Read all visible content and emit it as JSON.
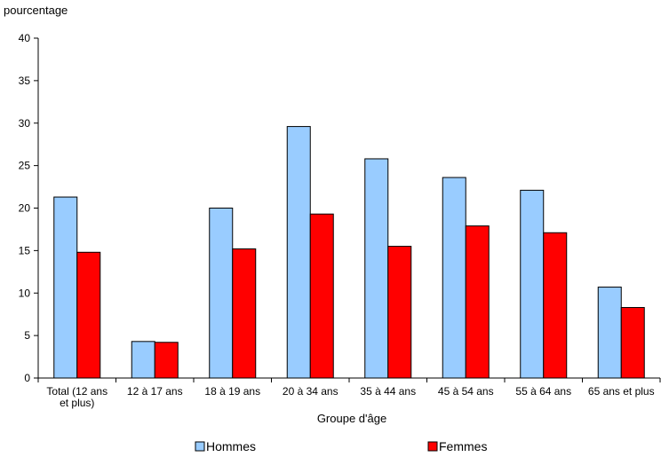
{
  "chart_data": {
    "type": "bar",
    "ylabel": "pourcentage",
    "xlabel": "Groupe d'âge",
    "ylim": [
      0,
      40
    ],
    "yticks": [
      0,
      5,
      10,
      15,
      20,
      25,
      30,
      35,
      40
    ],
    "grid": false,
    "legend_position": "bottom",
    "categories": [
      [
        "Total (12 ans",
        "et plus)"
      ],
      [
        "12 à 17 ans"
      ],
      [
        "18 à 19 ans"
      ],
      [
        "20 à 34 ans"
      ],
      [
        "35 à 44 ans"
      ],
      [
        "45 à 54 ans"
      ],
      [
        "55 à 64 ans"
      ],
      [
        "65 ans et plus"
      ]
    ],
    "series": [
      {
        "name": "Hommes",
        "color": "#99ccff",
        "values": [
          21.3,
          4.3,
          20.0,
          29.6,
          25.8,
          23.6,
          22.1,
          10.7
        ]
      },
      {
        "name": "Femmes",
        "color": "#ff0000",
        "values": [
          14.8,
          4.2,
          15.2,
          19.3,
          15.5,
          17.9,
          17.1,
          8.3
        ]
      }
    ]
  }
}
